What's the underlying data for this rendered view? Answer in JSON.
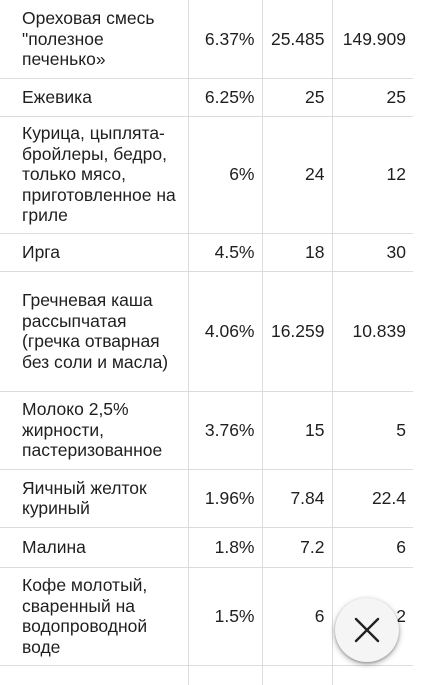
{
  "table": {
    "rows": [
      {
        "name": "Ореховая смесь \"полезное печенько»",
        "pct": "6.37%",
        "qty": "25.485",
        "val": "149.909"
      },
      {
        "name": "Ежевика",
        "pct": "6.25%",
        "qty": "25",
        "val": "25"
      },
      {
        "name": "Курица, цыплята-бройлеры, бедро, только мясо, приготовленное на гриле",
        "pct": "6%",
        "qty": "24",
        "val": "12"
      },
      {
        "name": "Ирга",
        "pct": "4.5%",
        "qty": "18",
        "val": "30"
      },
      {
        "name": "Гречневая каша рассыпчатая (гречка отварная без соли и масла)",
        "pct": "4.06%",
        "qty": "16.259",
        "val": "10.839"
      },
      {
        "name": "Молоко 2,5% жирности, пастеризованное",
        "pct": "3.76%",
        "qty": "15",
        "val": "5"
      },
      {
        "name": "Яичный желток куриный",
        "pct": "1.96%",
        "qty": "7.84",
        "val": "22.4"
      },
      {
        "name": "Малина",
        "pct": "1.8%",
        "qty": "7.2",
        "val": "6"
      },
      {
        "name": "Кофе молотый, сваренный на водопроводной воде",
        "pct": "1.5%",
        "qty": "6",
        "val": "2"
      }
    ]
  },
  "close_button": {
    "icon": "close-icon"
  }
}
